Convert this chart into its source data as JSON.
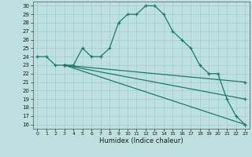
{
  "xlabel": "Humidex (Indice chaleur)",
  "xlim": [
    -0.5,
    23.5
  ],
  "ylim": [
    15.5,
    30.5
  ],
  "yticks": [
    16,
    17,
    18,
    19,
    20,
    21,
    22,
    23,
    24,
    25,
    26,
    27,
    28,
    29,
    30
  ],
  "xticks": [
    0,
    1,
    2,
    3,
    4,
    5,
    6,
    7,
    8,
    9,
    10,
    11,
    12,
    13,
    14,
    15,
    16,
    17,
    18,
    19,
    20,
    21,
    22,
    23
  ],
  "background_color": "#bfe0e0",
  "grid_color": "#9ecece",
  "line_color": "#1a7a6e",
  "line1_x": [
    0,
    1,
    2,
    3,
    4,
    5,
    6,
    7,
    8,
    9,
    10,
    11,
    12,
    13,
    14,
    15,
    16,
    17,
    18,
    19,
    20,
    21,
    22,
    23
  ],
  "line1_y": [
    24,
    24,
    23,
    23,
    23,
    25,
    24,
    24,
    25,
    28,
    29,
    29,
    30,
    30,
    29,
    27,
    26,
    25,
    23,
    22,
    22,
    19,
    17,
    16
  ],
  "line2_x": [
    3,
    23
  ],
  "line2_y": [
    23,
    21
  ],
  "line3_x": [
    3,
    23
  ],
  "line3_y": [
    23,
    19
  ],
  "line4_x": [
    3,
    23
  ],
  "line4_y": [
    23,
    16
  ]
}
